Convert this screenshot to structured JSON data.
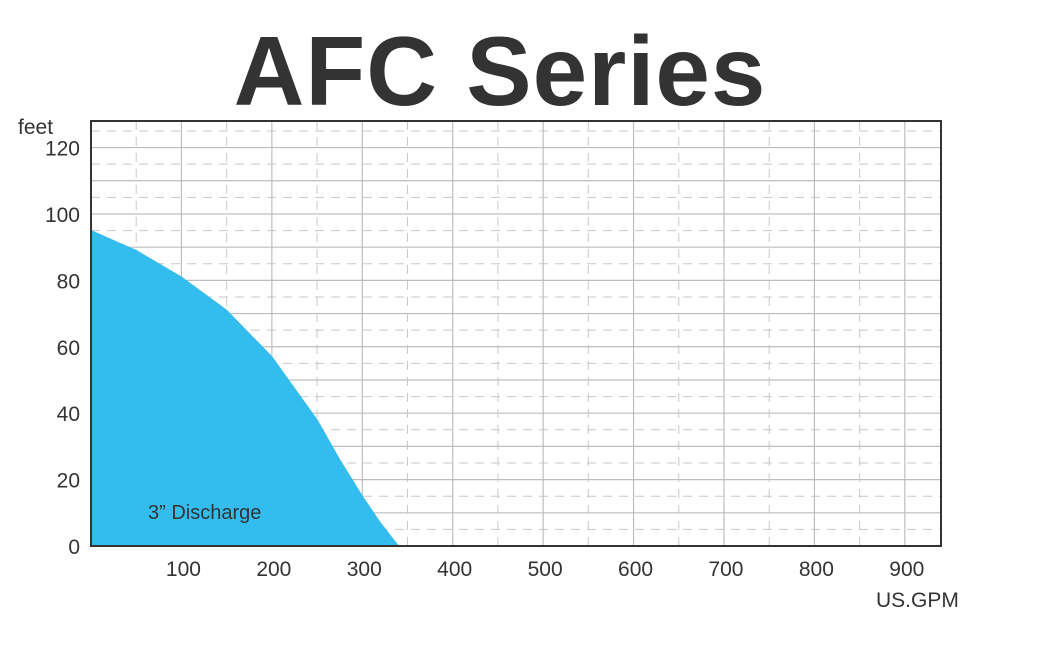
{
  "chart_data": {
    "type": "area",
    "title": "AFC Series",
    "xlabel": "US.GPM",
    "ylabel": "feet",
    "xlim": [
      0,
      940
    ],
    "ylim": [
      0,
      128
    ],
    "xticks": [
      100,
      200,
      300,
      400,
      500,
      600,
      700,
      800,
      900
    ],
    "yticks": [
      0,
      20,
      40,
      60,
      80,
      100,
      120
    ],
    "grid": true,
    "series": [
      {
        "name": "3” Discharge",
        "color": "#33bdee",
        "x": [
          0,
          50,
          100,
          150,
          200,
          250,
          275,
          300,
          320,
          340
        ],
        "y": [
          95,
          89,
          81,
          71,
          57,
          38,
          26,
          15,
          7,
          0
        ]
      }
    ]
  }
}
